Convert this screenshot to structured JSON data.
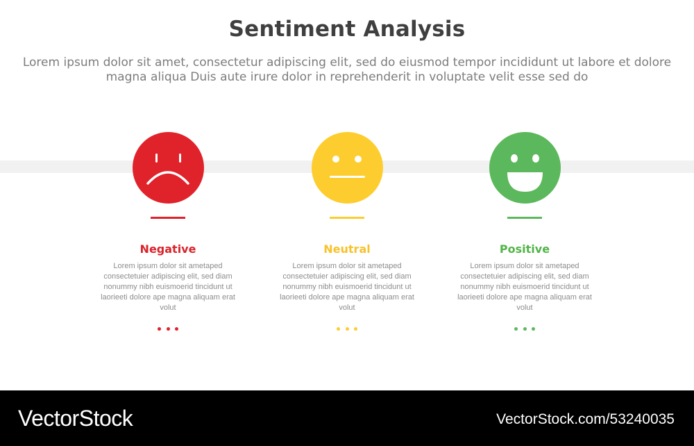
{
  "header": {
    "title": "Sentiment Analysis",
    "subtitle": "Lorem ipsum dolor sit amet, consectetur adipiscing elit, sed do eiusmod tempor incididunt ut labore et dolore magna aliqua Duis aute irure dolor in reprehenderit in voluptate velit esse sed do"
  },
  "items": [
    {
      "label": "Negative",
      "color": "#e0222b",
      "icon": "sad-face-icon",
      "description": "Lorem ipsum dolor sit ametaped consectetuier adipiscing elit, sed diam nonummy nibh euismoerid tincidunt ut laorieeti dolore ape magna aliquam erat volut"
    },
    {
      "label": "Neutral",
      "color": "#fdcd2f",
      "icon": "neutral-face-icon",
      "description": "Lorem ipsum dolor sit ametaped consectetuier adipiscing elit, sed diam nonummy nibh euismoerid tincidunt ut laorieeti dolore ape magna aliquam erat volut"
    },
    {
      "label": "Positive",
      "color": "#5cb85c",
      "icon": "happy-face-icon",
      "description": "Lorem ipsum dolor sit ametaped consectetuier adipiscing elit, sed diam nonummy nibh euismoerid tincidunt ut laorieeti dolore ape magna aliquam erat volut"
    }
  ],
  "colors": {
    "label_negative": "#d9232b",
    "label_neutral": "#f7c22a",
    "label_positive": "#52b448"
  },
  "footer": {
    "brand": "VectorStock",
    "url": "VectorStock.com/53240035"
  }
}
